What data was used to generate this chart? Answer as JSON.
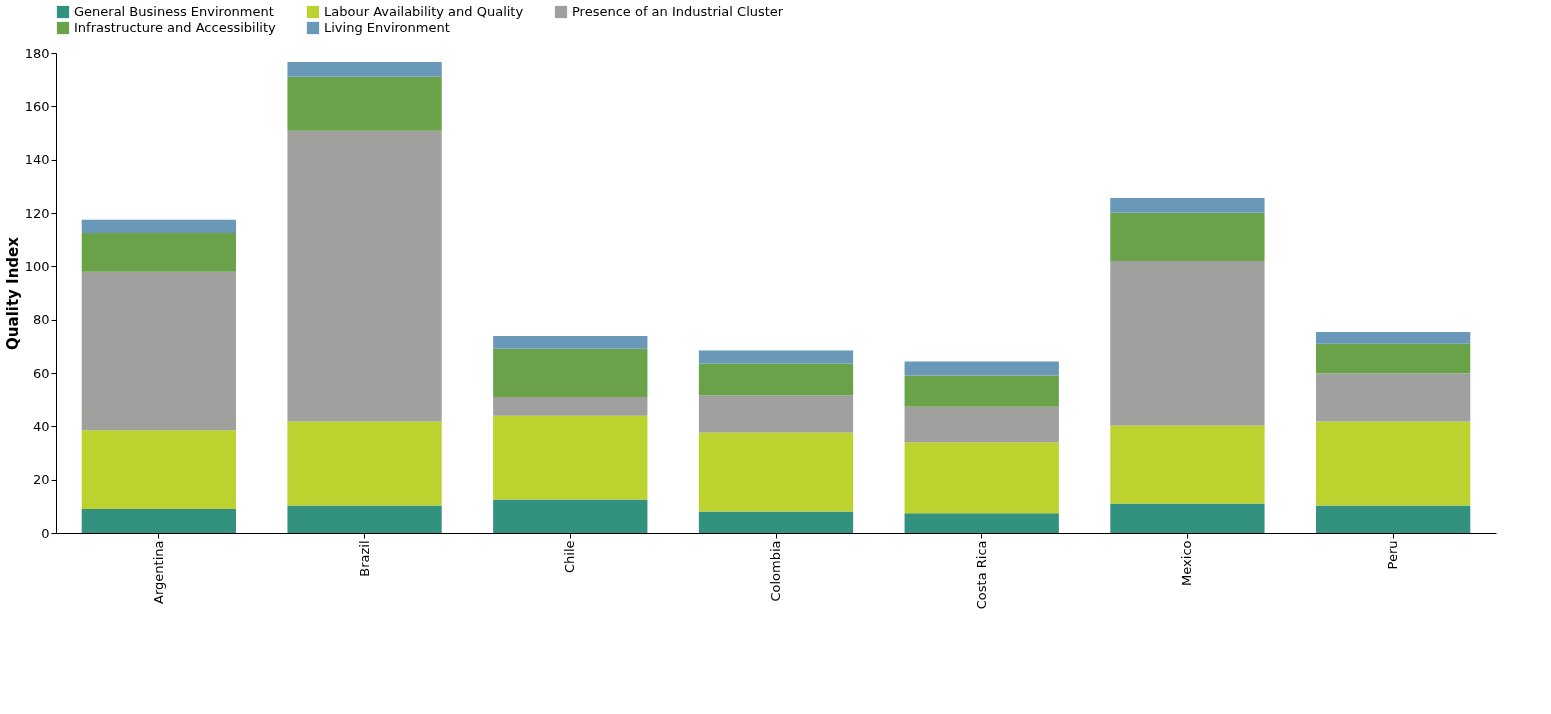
{
  "chart_data": {
    "type": "bar",
    "stacked": true,
    "ylabel": "Quality Index",
    "ylim": [
      0,
      180
    ],
    "yticks": [
      0,
      20,
      40,
      60,
      80,
      100,
      120,
      140,
      160,
      180
    ],
    "grid": false,
    "legend": "top",
    "categories": [
      "Argentina",
      "Brazil",
      "Chile",
      "Colombia",
      "Costa Rica",
      "Mexico",
      "Peru"
    ],
    "series": [
      {
        "name": "General Business Environment",
        "color": "#339180",
        "values": [
          9,
          10.3,
          12.6,
          8.1,
          7.4,
          11.1,
          10.3
        ]
      },
      {
        "name": "Labour Availability and Quality",
        "color": "#bcd22f",
        "values": [
          29.5,
          31.5,
          31.4,
          29.6,
          26.6,
          29.2,
          31.5
        ]
      },
      {
        "name": "Presence of an Industrial Cluster",
        "color": "#a0a09e",
        "values": [
          59.5,
          109,
          7,
          14,
          13.3,
          61.7,
          18.1
        ]
      },
      {
        "name": "Infrastructure and Accessibility",
        "color": "#6aa24a",
        "values": [
          14.5,
          20.3,
          18.1,
          11.9,
          11.8,
          18.1,
          11.1
        ]
      },
      {
        "name": "Living Environment",
        "color": "#6a98b8",
        "values": [
          5,
          5.5,
          4.8,
          4.8,
          5.2,
          5.5,
          4.4
        ]
      }
    ]
  }
}
